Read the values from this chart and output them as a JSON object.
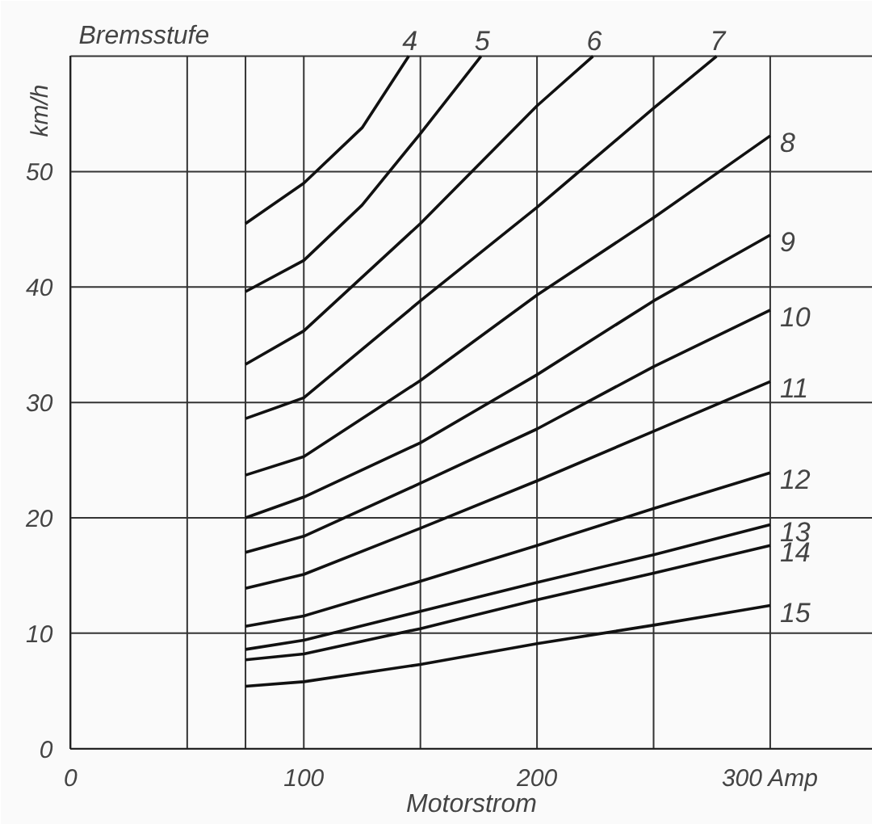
{
  "chart_data": {
    "type": "line",
    "xlabel": "Motorstrom",
    "ylabel": "km/h",
    "annotations": [
      "Bremsstufe"
    ],
    "xlim": [
      0,
      344
    ],
    "ylim": [
      0,
      60
    ],
    "xticks": [
      0,
      {
        "value": 50,
        "label": null
      },
      {
        "value": 75,
        "label": null
      },
      100,
      {
        "value": 150,
        "label": null
      },
      200,
      {
        "value": 250,
        "label": null
      },
      {
        "value": 300,
        "label": "300 Amp"
      }
    ],
    "yticks": [
      0,
      10,
      20,
      30,
      40,
      50,
      {
        "value": 60,
        "label": null
      }
    ],
    "grid": true,
    "marker": "none",
    "line_style": "solid",
    "series": [
      {
        "name": "4",
        "color": "#111111",
        "x": [
          75,
          100,
          125,
          145
        ],
        "values": [
          45.5,
          49,
          53.8,
          60
        ]
      },
      {
        "name": "5",
        "color": "#111111",
        "x": [
          75,
          100,
          125,
          150,
          176
        ],
        "values": [
          39.6,
          42.3,
          47.1,
          53.3,
          60
        ]
      },
      {
        "name": "6",
        "color": "#111111",
        "x": [
          75,
          100,
          150,
          200,
          224
        ],
        "values": [
          33.3,
          36.2,
          45.5,
          55.7,
          60
        ]
      },
      {
        "name": "7",
        "color": "#111111",
        "x": [
          75,
          100,
          150,
          200,
          250,
          277
        ],
        "values": [
          28.6,
          30.4,
          38.8,
          46.9,
          55.5,
          60
        ]
      },
      {
        "name": "8",
        "color": "#111111",
        "x": [
          75,
          100,
          150,
          200,
          250,
          300
        ],
        "values": [
          23.7,
          25.3,
          31.9,
          39.3,
          46,
          53.1
        ]
      },
      {
        "name": "9",
        "color": "#111111",
        "x": [
          75,
          100,
          150,
          200,
          250,
          300
        ],
        "values": [
          20,
          21.8,
          26.5,
          32.4,
          38.8,
          44.5
        ]
      },
      {
        "name": "10",
        "color": "#111111",
        "x": [
          75,
          100,
          150,
          200,
          250,
          300
        ],
        "values": [
          17,
          18.4,
          23,
          27.7,
          33.1,
          38
        ]
      },
      {
        "name": "11",
        "color": "#111111",
        "x": [
          75,
          100,
          150,
          200,
          250,
          300
        ],
        "values": [
          13.9,
          15.1,
          19.1,
          23.2,
          27.5,
          31.8
        ]
      },
      {
        "name": "12",
        "color": "#111111",
        "x": [
          75,
          100,
          150,
          200,
          250,
          300
        ],
        "values": [
          10.6,
          11.5,
          14.5,
          17.6,
          20.8,
          23.9
        ]
      },
      {
        "name": "13",
        "color": "#111111",
        "x": [
          75,
          100,
          150,
          200,
          250,
          300
        ],
        "values": [
          8.6,
          9.4,
          11.9,
          14.4,
          16.8,
          19.4
        ]
      },
      {
        "name": "14",
        "color": "#111111",
        "x": [
          75,
          100,
          150,
          200,
          250,
          300
        ],
        "values": [
          7.7,
          8.2,
          10.4,
          12.9,
          15.2,
          17.6
        ]
      },
      {
        "name": "15",
        "color": "#111111",
        "x": [
          75,
          100,
          150,
          200,
          250,
          300
        ],
        "values": [
          5.4,
          5.8,
          7.3,
          9.1,
          10.7,
          12.4
        ]
      }
    ]
  }
}
